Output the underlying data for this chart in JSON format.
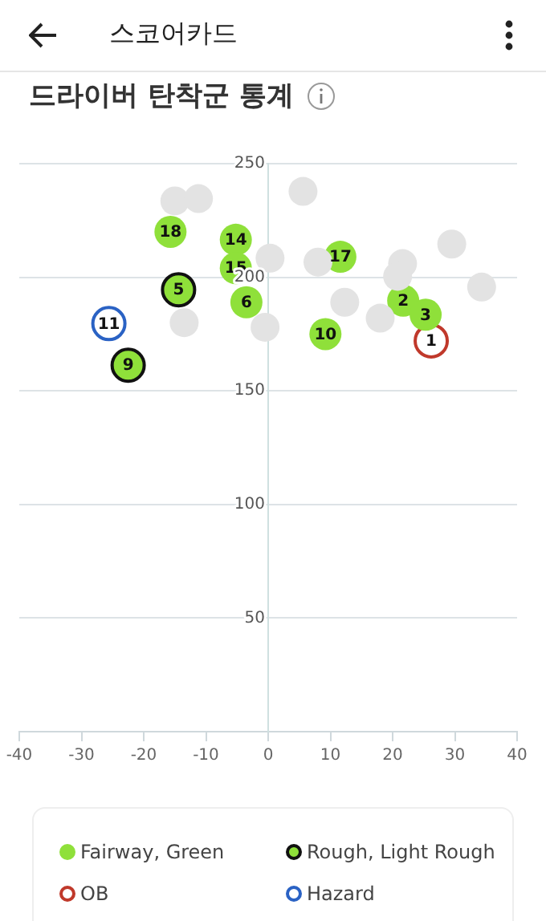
{
  "chart_data": {
    "type": "scatter",
    "title": "드라이버 탄착군 통계",
    "annotations": [
      "스코어카드",
      {
        "text": "18",
        "x": -15.7,
        "y": 220
      },
      {
        "text": "14",
        "x": -5.2,
        "y": 216.5
      },
      {
        "text": "15",
        "x": -5.2,
        "y": 204
      },
      {
        "text": "17",
        "x": 11.6,
        "y": 209
      },
      {
        "text": "6",
        "x": -3.5,
        "y": 189
      },
      {
        "text": "2",
        "x": 21.7,
        "y": 189.7
      },
      {
        "text": "3",
        "x": 25.3,
        "y": 183.5
      },
      {
        "text": "10",
        "x": 9.2,
        "y": 175
      },
      {
        "text": "5",
        "x": -14.4,
        "y": 194.5
      },
      {
        "text": "9",
        "x": -22.5,
        "y": 161.3
      },
      {
        "text": "1",
        "x": 26.2,
        "y": 172
      },
      {
        "text": "11",
        "x": -25.6,
        "y": 179.6
      }
    ],
    "xlim": [
      -40,
      40
    ],
    "xticks": [
      -40,
      -30,
      -20,
      -10,
      0,
      10,
      20,
      30,
      40
    ],
    "ylim": [
      0,
      250
    ],
    "yticks": [
      {
        "value": 0,
        "label": null
      },
      50,
      100,
      150,
      200,
      250
    ],
    "grid": "y",
    "legend": "bottom",
    "marker": "circle",
    "series": [
      {
        "color": "#e3e3e3",
        "x": [
          -15,
          -11.2,
          5.6,
          0.3,
          8,
          21.6,
          20.8,
          29.5,
          34.3,
          12.3,
          18,
          -0.5,
          -13.5
        ],
        "values": [
          233.6,
          234.6,
          237.8,
          208.4,
          206.7,
          206,
          200.4,
          214.6,
          195.7,
          189,
          182,
          178,
          180
        ]
      },
      {
        "name": "Fairway, Green",
        "color": "#8fe03a",
        "x": [
          -15.7,
          -5.2,
          -5.2,
          11.6,
          -3.5,
          21.7,
          25.3,
          9.2
        ],
        "values": [
          220,
          216.5,
          204,
          209,
          189,
          189.7,
          183.5,
          175
        ]
      },
      {
        "name": "Rough, Light Rough",
        "color": "#8fe03a",
        "x": [
          -14.4,
          -22.5
        ],
        "values": [
          194.5,
          161.3
        ]
      },
      {
        "name": "OB",
        "color": "#c0392b",
        "x": [
          26.2
        ],
        "values": [
          172
        ]
      },
      {
        "name": "Hazard",
        "color": "#2a62c4",
        "x": [
          -25.6
        ],
        "values": [
          179.6
        ]
      }
    ]
  }
}
